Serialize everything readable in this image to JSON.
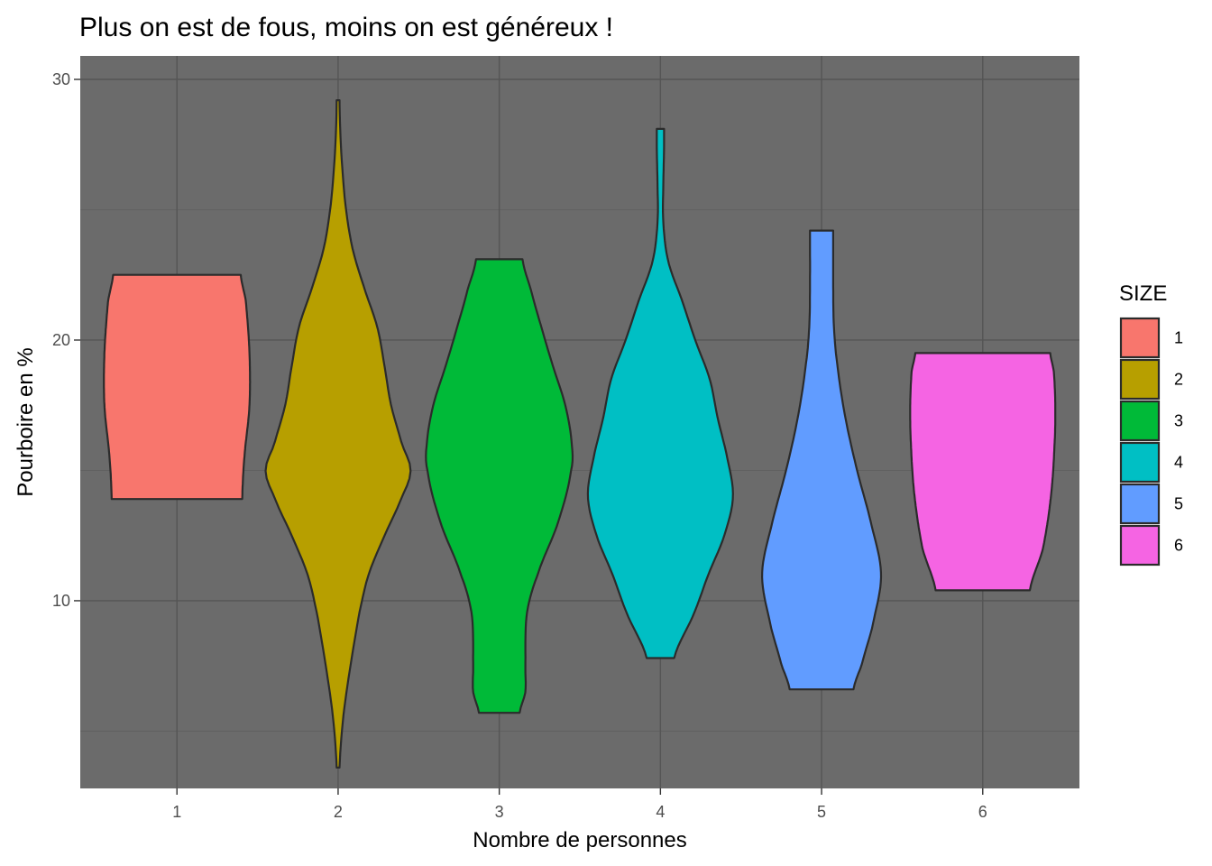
{
  "chart_data": {
    "type": "violin",
    "title": "Plus on est de fous, moins on est généreux !",
    "xlabel": "Nombre de personnes",
    "ylabel": "Pourboire en %",
    "categories": [
      "1",
      "2",
      "3",
      "4",
      "5",
      "6"
    ],
    "ylim": [
      2.8,
      30.9
    ],
    "yticks": [
      10,
      20,
      30
    ],
    "grid": true,
    "legend": {
      "title": "SIZE",
      "position": "right",
      "entries": [
        "1",
        "2",
        "3",
        "4",
        "5",
        "6"
      ]
    },
    "series": [
      {
        "name": "1",
        "color": "#F8766D",
        "range": [
          13.9,
          22.5
        ],
        "profile": [
          [
            13.9,
            0.9
          ],
          [
            15.5,
            0.93
          ],
          [
            17.5,
            1.0
          ],
          [
            19.5,
            1.0
          ],
          [
            21.5,
            0.95
          ],
          [
            22.5,
            0.88
          ]
        ]
      },
      {
        "name": "2",
        "color": "#B79F00",
        "range": [
          3.6,
          29.2
        ],
        "profile": [
          [
            3.6,
            0.02
          ],
          [
            5.5,
            0.07
          ],
          [
            7.5,
            0.17
          ],
          [
            9.5,
            0.29
          ],
          [
            11,
            0.42
          ],
          [
            12.5,
            0.64
          ],
          [
            14,
            0.88
          ],
          [
            15,
            1.0
          ],
          [
            16,
            0.88
          ],
          [
            17.5,
            0.73
          ],
          [
            19,
            0.64
          ],
          [
            20.5,
            0.54
          ],
          [
            22,
            0.36
          ],
          [
            23.5,
            0.2
          ],
          [
            25,
            0.11
          ],
          [
            26.5,
            0.06
          ],
          [
            28,
            0.03
          ],
          [
            29.2,
            0.02
          ]
        ]
      },
      {
        "name": "3",
        "color": "#00BA38",
        "range": [
          5.7,
          23.1
        ],
        "profile": [
          [
            5.7,
            0.28
          ],
          [
            6.5,
            0.36
          ],
          [
            7.5,
            0.36
          ],
          [
            9.5,
            0.38
          ],
          [
            11,
            0.53
          ],
          [
            13,
            0.81
          ],
          [
            15,
            0.99
          ],
          [
            16,
            1.0
          ],
          [
            17.5,
            0.91
          ],
          [
            19,
            0.74
          ],
          [
            20.5,
            0.58
          ],
          [
            22,
            0.43
          ],
          [
            23.1,
            0.32
          ]
        ]
      },
      {
        "name": "4",
        "color": "#00BFC4",
        "range": [
          7.8,
          28.1
        ],
        "profile": [
          [
            7.8,
            0.19
          ],
          [
            9.5,
            0.46
          ],
          [
            11,
            0.66
          ],
          [
            12.5,
            0.88
          ],
          [
            14,
            1.0
          ],
          [
            15.5,
            0.92
          ],
          [
            17,
            0.79
          ],
          [
            18.5,
            0.68
          ],
          [
            20,
            0.48
          ],
          [
            21.5,
            0.3
          ],
          [
            23,
            0.11
          ],
          [
            24.5,
            0.04
          ],
          [
            26,
            0.04
          ],
          [
            27.3,
            0.05
          ],
          [
            28.1,
            0.05
          ]
        ]
      },
      {
        "name": "5",
        "color": "#619CFF",
        "range": [
          6.6,
          24.2
        ],
        "profile": [
          [
            6.6,
            0.44
          ],
          [
            7.5,
            0.55
          ],
          [
            9,
            0.7
          ],
          [
            11,
            0.82
          ],
          [
            13,
            0.68
          ],
          [
            15,
            0.49
          ],
          [
            17,
            0.33
          ],
          [
            19,
            0.22
          ],
          [
            20.5,
            0.17
          ],
          [
            22,
            0.16
          ],
          [
            24.2,
            0.16
          ]
        ]
      },
      {
        "name": "6",
        "color": "#F564E3",
        "range": [
          10.4,
          19.5
        ],
        "profile": [
          [
            10.4,
            0.65
          ],
          [
            12,
            0.83
          ],
          [
            14,
            0.94
          ],
          [
            16,
            0.99
          ],
          [
            17.5,
            1.0
          ],
          [
            18.8,
            0.98
          ],
          [
            19.5,
            0.93
          ]
        ]
      }
    ]
  }
}
